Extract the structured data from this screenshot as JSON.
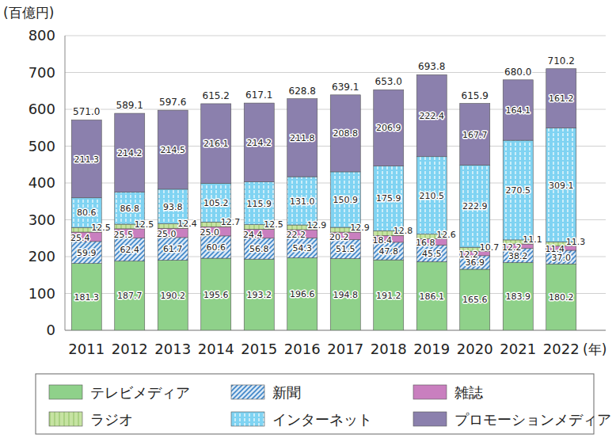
{
  "chart_data": {
    "type": "bar",
    "stacked": true,
    "data_labels": true,
    "grid": true,
    "legend": "bottom",
    "y_label": "(百億円)",
    "x_label": "(年)",
    "categories": [
      "2011",
      "2012",
      "2013",
      "2014",
      "2015",
      "2016",
      "2017",
      "2018",
      "2019",
      "2020",
      "2021",
      "2022"
    ],
    "ylim": [
      0,
      800
    ],
    "yticks": [
      0,
      100,
      200,
      300,
      400,
      500,
      600,
      700,
      800
    ],
    "series": [
      {
        "name": "テレビメディア",
        "color": "#8fd18a",
        "values": [
          181.3,
          187.7,
          190.2,
          195.6,
          193.2,
          196.6,
          194.8,
          191.2,
          186.1,
          165.6,
          183.9,
          180.2
        ]
      },
      {
        "name": "新聞",
        "color": "#3f86c8",
        "values": [
          59.9,
          62.4,
          61.7,
          60.6,
          56.8,
          54.3,
          51.5,
          47.8,
          45.5,
          36.9,
          38.2,
          37.0
        ],
        "value_labels": [
          "59.9",
          "62.4",
          "61.7",
          "60.6",
          "56.8",
          "54.3",
          "51.5",
          "47.8",
          "45.5",
          "36.9",
          "38.2",
          "37.0"
        ]
      },
      {
        "name": "雑誌",
        "color": "#c97fbf",
        "values": [
          25.4,
          25.5,
          25.0,
          25.0,
          24.4,
          22.2,
          20.2,
          18.4,
          16.8,
          12.2,
          12.2,
          11.4
        ],
        "value_labels": [
          "25.4",
          "25.5",
          "25.0",
          "25.0",
          "24.4",
          "22.2",
          "20.2",
          "18.4",
          "16.8",
          "12.2",
          "12.2",
          "11.4"
        ]
      },
      {
        "name": "ラジオ",
        "color": "#c6e3a2",
        "values": [
          12.5,
          12.5,
          12.4,
          12.7,
          12.5,
          12.9,
          12.9,
          12.8,
          12.6,
          10.7,
          11.1,
          11.3
        ]
      },
      {
        "name": "インターネット",
        "color": "#7fd3f2",
        "values": [
          80.6,
          86.8,
          93.8,
          105.2,
          115.9,
          131.0,
          150.9,
          175.9,
          210.5,
          222.9,
          270.5,
          309.1
        ],
        "value_labels": [
          "80.6",
          "86.8",
          "93.8",
          "105.2",
          "115.9",
          "131.0",
          "150.9",
          "175.9",
          "210.5",
          "222.9",
          "270.5",
          "309.1"
        ]
      },
      {
        "name": "プロモーションメディア",
        "color": "#8b80ad",
        "values": [
          211.3,
          214.2,
          214.5,
          216.1,
          214.2,
          211.8,
          208.8,
          206.9,
          222.4,
          167.7,
          164.1,
          161.2
        ]
      }
    ],
    "totals": {
      "values": [
        571.0,
        589.1,
        597.6,
        615.2,
        617.1,
        628.8,
        639.1,
        653.0,
        693.8,
        615.9,
        680.0,
        710.2
      ],
      "value_labels": [
        "571.0",
        "589.1",
        "597.6",
        "615.2",
        "617.1",
        "628.8",
        "639.1",
        "653.0",
        "693.8",
        "615.9",
        "680.0",
        "710.2"
      ]
    }
  }
}
